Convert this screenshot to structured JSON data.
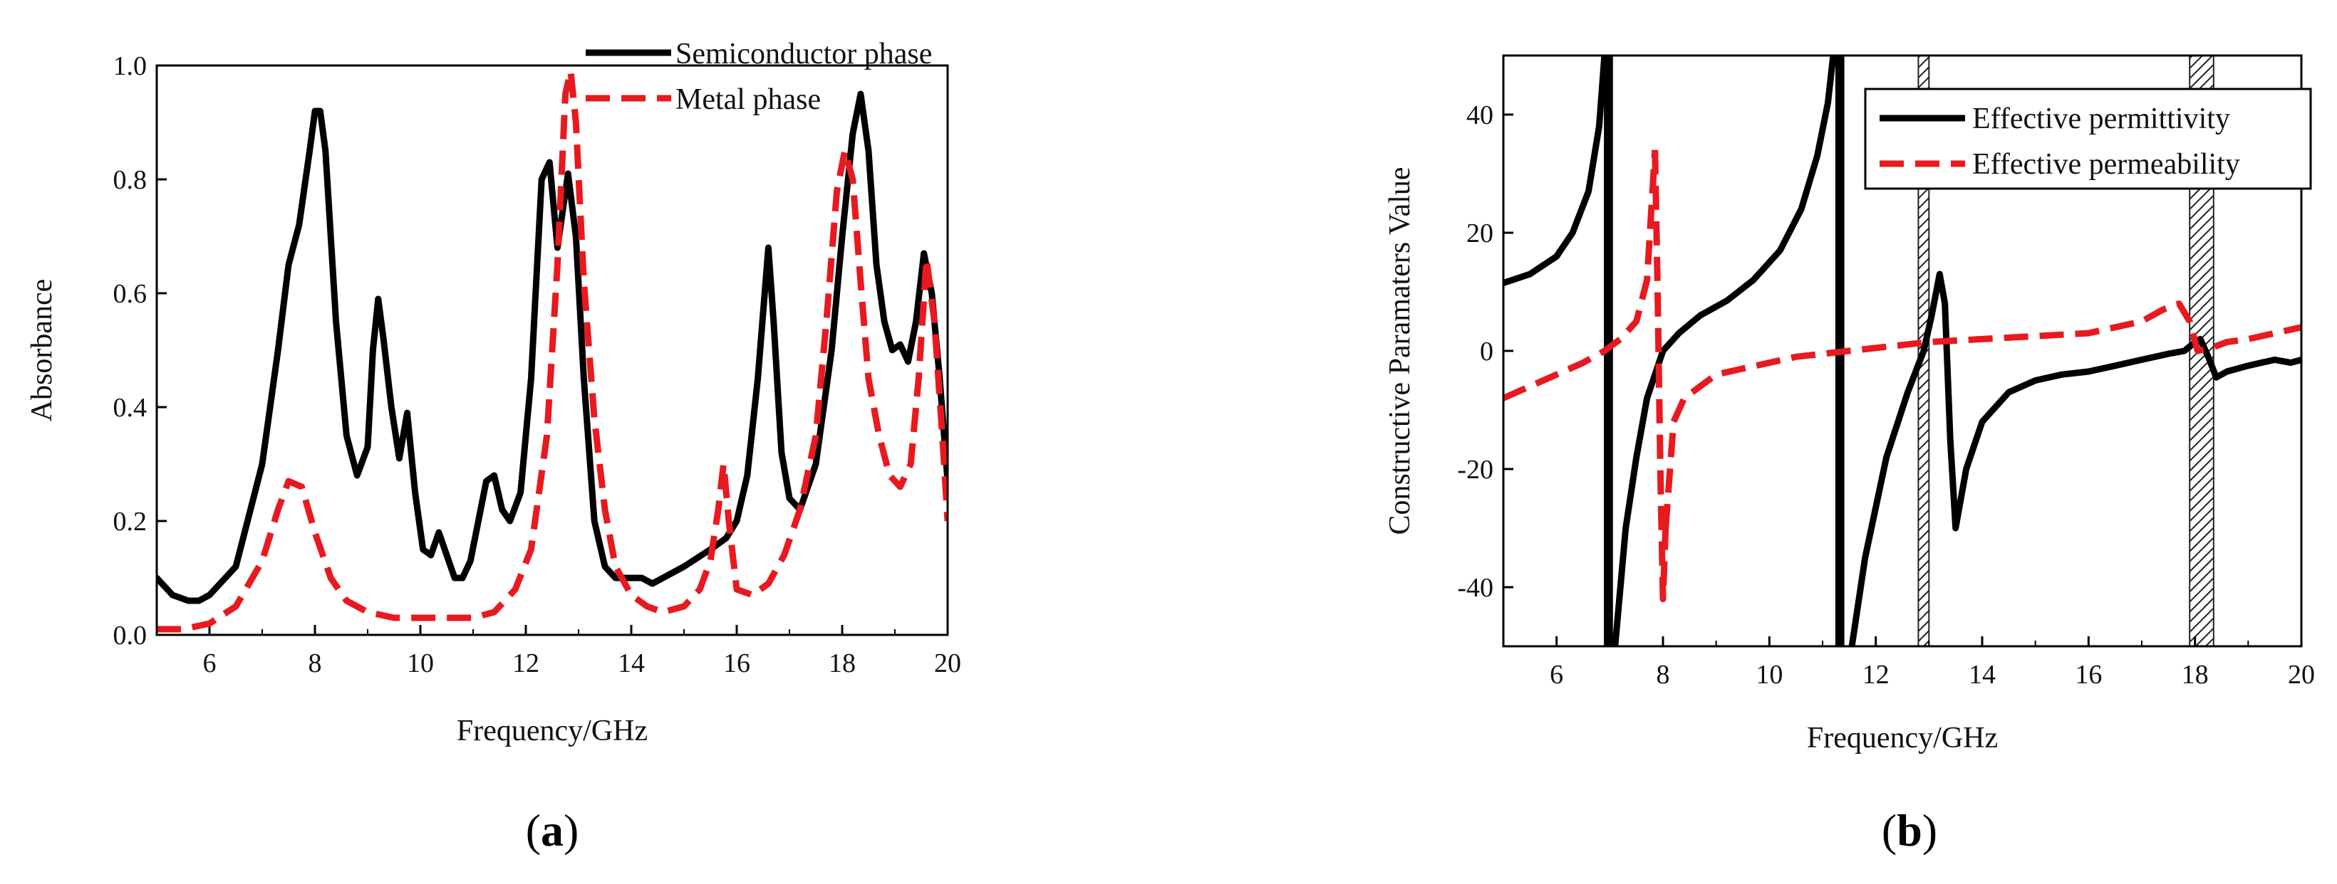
{
  "colors": {
    "solid": "#000000",
    "dashed": "#e8191f"
  },
  "captions": [
    {
      "open": "(",
      "letter": "a",
      "close": ")"
    },
    {
      "open": "(",
      "letter": "b",
      "close": ")"
    }
  ],
  "chart_data": [
    {
      "type": "line",
      "panel": "a",
      "title": "",
      "xlabel": "Frequency/GHz",
      "ylabel": "Absorbance",
      "xlim": [
        5,
        20
      ],
      "ylim": [
        0,
        1.0
      ],
      "xticks": [
        6,
        8,
        10,
        12,
        14,
        16,
        18,
        20
      ],
      "yticks": [
        0.0,
        0.2,
        0.4,
        0.6,
        0.8,
        1.0
      ],
      "yticklabels": [
        "0.0",
        "0.2",
        "0.4",
        "0.6",
        "0.8",
        "1.0"
      ],
      "legend_position": "top-right",
      "series": [
        {
          "name": "Semiconductor phase",
          "style": "solid",
          "color": "#000000",
          "x": [
            5.0,
            5.3,
            5.6,
            5.8,
            6.0,
            6.5,
            7.0,
            7.3,
            7.5,
            7.7,
            7.9,
            8.0,
            8.1,
            8.2,
            8.4,
            8.6,
            8.8,
            9.0,
            9.1,
            9.2,
            9.3,
            9.45,
            9.6,
            9.75,
            9.9,
            10.05,
            10.2,
            10.35,
            10.5,
            10.65,
            10.8,
            10.95,
            11.1,
            11.25,
            11.4,
            11.55,
            11.7,
            11.9,
            12.1,
            12.3,
            12.45,
            12.6,
            12.8,
            12.95,
            13.1,
            13.3,
            13.5,
            13.7,
            14.0,
            14.2,
            14.4,
            14.6,
            15.0,
            15.5,
            15.8,
            16.0,
            16.2,
            16.4,
            16.6,
            16.7,
            16.85,
            17.0,
            17.2,
            17.5,
            17.8,
            18.0,
            18.2,
            18.35,
            18.5,
            18.65,
            18.8,
            18.95,
            19.1,
            19.25,
            19.4,
            19.55,
            19.7,
            19.85,
            20.0
          ],
          "y": [
            0.1,
            0.07,
            0.06,
            0.06,
            0.07,
            0.12,
            0.3,
            0.5,
            0.65,
            0.72,
            0.85,
            0.92,
            0.92,
            0.85,
            0.55,
            0.35,
            0.28,
            0.33,
            0.5,
            0.59,
            0.52,
            0.4,
            0.31,
            0.39,
            0.25,
            0.15,
            0.14,
            0.18,
            0.14,
            0.1,
            0.1,
            0.13,
            0.2,
            0.27,
            0.28,
            0.22,
            0.2,
            0.25,
            0.45,
            0.8,
            0.83,
            0.68,
            0.81,
            0.7,
            0.45,
            0.2,
            0.12,
            0.1,
            0.1,
            0.1,
            0.09,
            0.1,
            0.12,
            0.15,
            0.17,
            0.2,
            0.28,
            0.45,
            0.68,
            0.55,
            0.32,
            0.24,
            0.22,
            0.3,
            0.5,
            0.7,
            0.88,
            0.95,
            0.85,
            0.65,
            0.55,
            0.5,
            0.51,
            0.48,
            0.55,
            0.67,
            0.6,
            0.45,
            0.27
          ]
        },
        {
          "name": "Metal phase",
          "style": "dashed",
          "color": "#e8191f",
          "x": [
            5.0,
            5.5,
            6.0,
            6.5,
            7.0,
            7.3,
            7.5,
            7.75,
            8.0,
            8.3,
            8.6,
            9.0,
            9.5,
            10.0,
            10.5,
            10.8,
            11.0,
            11.4,
            11.8,
            12.1,
            12.4,
            12.6,
            12.75,
            12.85,
            12.95,
            13.1,
            13.3,
            13.5,
            13.7,
            14.0,
            14.3,
            14.6,
            15.0,
            15.3,
            15.5,
            15.65,
            15.75,
            15.85,
            16.0,
            16.3,
            16.6,
            16.9,
            17.2,
            17.5,
            17.7,
            17.9,
            18.05,
            18.2,
            18.35,
            18.5,
            18.7,
            18.9,
            19.1,
            19.3,
            19.45,
            19.6,
            19.75,
            19.9,
            20.0
          ],
          "y": [
            0.01,
            0.01,
            0.02,
            0.05,
            0.13,
            0.22,
            0.27,
            0.26,
            0.18,
            0.1,
            0.06,
            0.04,
            0.03,
            0.03,
            0.03,
            0.03,
            0.03,
            0.04,
            0.08,
            0.15,
            0.35,
            0.65,
            0.95,
            0.99,
            0.9,
            0.62,
            0.38,
            0.22,
            0.12,
            0.07,
            0.05,
            0.04,
            0.05,
            0.08,
            0.13,
            0.22,
            0.3,
            0.2,
            0.08,
            0.07,
            0.09,
            0.14,
            0.22,
            0.35,
            0.55,
            0.78,
            0.85,
            0.8,
            0.62,
            0.45,
            0.35,
            0.28,
            0.26,
            0.3,
            0.45,
            0.66,
            0.55,
            0.35,
            0.2
          ]
        }
      ]
    },
    {
      "type": "line",
      "panel": "b",
      "title": "",
      "xlabel": "Frequency/GHz",
      "ylabel": "Constructive Paramaters Value",
      "xlim": [
        5,
        20
      ],
      "ylim": [
        -50,
        50
      ],
      "xticks": [
        6,
        8,
        10,
        12,
        14,
        16,
        18,
        20
      ],
      "yticks": [
        -40,
        -20,
        0,
        20,
        40
      ],
      "legend_position": "top-right",
      "hatched_regions": [
        [
          12.8,
          13.0
        ],
        [
          17.9,
          18.35
        ]
      ],
      "series": [
        {
          "name": "Effective permittivity",
          "style": "solid",
          "color": "#000000",
          "segments": [
            {
              "x": [
                5.0,
                5.5,
                6.0,
                6.3,
                6.6,
                6.8,
                6.9
              ],
              "y": [
                11.5,
                13,
                16,
                20,
                27,
                38,
                50
              ]
            },
            {
              "x": [
                6.95,
                6.95
              ],
              "y": [
                50,
                -50
              ]
            },
            {
              "x": [
                7.0,
                7.0
              ],
              "y": [
                50,
                -50
              ]
            },
            {
              "x": [
                7.1,
                7.3,
                7.5,
                7.7,
                8.0,
                8.3,
                8.7,
                9.2,
                9.7,
                10.2,
                10.6,
                10.9,
                11.1,
                11.2
              ],
              "y": [
                -50,
                -30,
                -18,
                -8,
                0,
                3,
                6,
                8.5,
                12,
                17,
                24,
                33,
                42,
                50
              ]
            },
            {
              "x": [
                11.3,
                11.3
              ],
              "y": [
                50,
                -50
              ]
            },
            {
              "x": [
                11.35,
                11.35
              ],
              "y": [
                50,
                -50
              ]
            },
            {
              "x": [
                11.55,
                11.8,
                12.2,
                12.6,
                12.9,
                13.05,
                13.2,
                13.3,
                13.4,
                13.5,
                13.7,
                14.0,
                14.5,
                15.0,
                15.5,
                16.0,
                16.5,
                17.0,
                17.5,
                17.8,
                18.0,
                18.1,
                18.25,
                18.4,
                18.6,
                19.0,
                19.5,
                19.8,
                20.0
              ],
              "y": [
                -50,
                -35,
                -18,
                -7,
                0,
                6,
                13,
                8,
                -15,
                -30,
                -20,
                -12,
                -7,
                -5,
                -4,
                -3.5,
                -2.5,
                -1.5,
                -0.5,
                0,
                1.5,
                2,
                -1,
                -4.5,
                -3.5,
                -2.5,
                -1.5,
                -2,
                -1.5
              ]
            }
          ]
        },
        {
          "name": "Effective permeability",
          "style": "dashed",
          "color": "#e8191f",
          "segments": [
            {
              "x": [
                5.0,
                5.5,
                6.0,
                6.5,
                6.9,
                7.2,
                7.5,
                7.7,
                7.85
              ],
              "y": [
                -8,
                -6,
                -4,
                -2,
                0,
                2,
                5,
                12,
                34
              ]
            },
            {
              "x": [
                7.85,
                7.9,
                7.95,
                8.0,
                8.05
              ],
              "y": [
                34,
                10,
                -20,
                -42,
                -30
              ]
            },
            {
              "x": [
                8.05,
                8.2,
                8.4,
                8.7,
                9.0,
                9.5,
                10.0,
                10.5,
                11.0,
                11.5,
                12.0,
                12.5,
                13.0,
                14.0,
                15.0,
                16.0,
                17.0,
                17.4,
                17.7,
                17.9,
                18.05,
                18.3,
                18.6,
                19.0,
                19.5,
                20.0
              ],
              "y": [
                -30,
                -12,
                -8,
                -6,
                -4,
                -3,
                -2,
                -1,
                -0.5,
                0,
                0.5,
                1,
                1.5,
                2,
                2.5,
                3,
                5,
                7,
                8,
                5,
                0,
                0.5,
                1.5,
                2,
                3,
                4
              ]
            }
          ]
        }
      ]
    }
  ]
}
